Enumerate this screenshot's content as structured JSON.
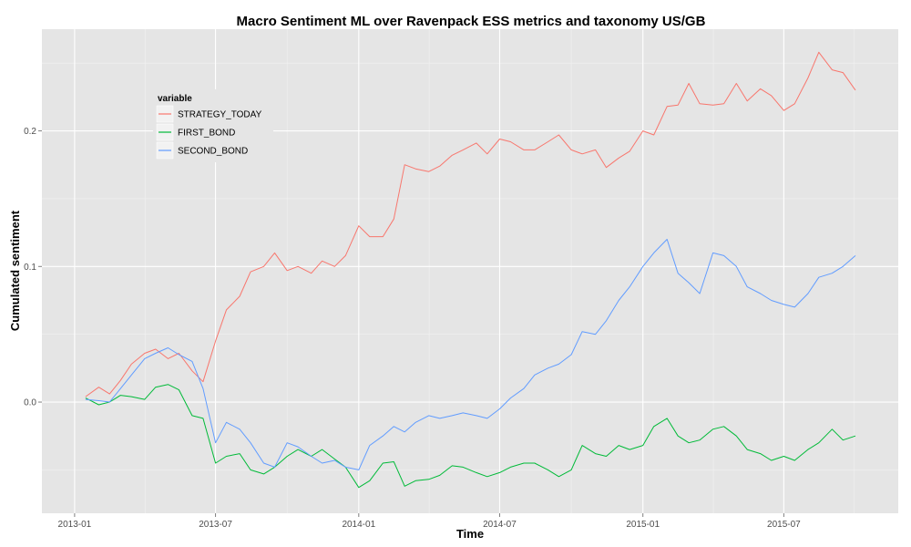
{
  "chart_data": {
    "type": "line",
    "title": "Macro Sentiment ML over Ravenpack ESS metrics and taxonomy US/GB",
    "xlabel": "Time",
    "ylabel": "Cumulated sentiment",
    "x_ticks": [
      "2013-01",
      "2013-07",
      "2014-01",
      "2014-07",
      "2015-01",
      "2015-07"
    ],
    "y_ticks": [
      "0.0",
      "0.1",
      "0.2"
    ],
    "xlim": [
      "2012-11-20",
      "2015-11-25"
    ],
    "ylim": [
      -0.082,
      0.275
    ],
    "grid": true,
    "legend": {
      "title": "variable",
      "position": "top-left"
    },
    "x": [
      "2013-01-15",
      "2013-02-01",
      "2013-02-15",
      "2013-03-01",
      "2013-03-15",
      "2013-04-01",
      "2013-04-15",
      "2013-05-01",
      "2013-05-15",
      "2013-06-01",
      "2013-06-15",
      "2013-07-01",
      "2013-07-15",
      "2013-08-01",
      "2013-08-15",
      "2013-09-01",
      "2013-09-15",
      "2013-10-01",
      "2013-10-15",
      "2013-11-01",
      "2013-11-15",
      "2013-12-01",
      "2013-12-15",
      "2014-01-01",
      "2014-01-15",
      "2014-02-01",
      "2014-02-15",
      "2014-03-01",
      "2014-03-15",
      "2014-04-01",
      "2014-04-15",
      "2014-05-01",
      "2014-05-15",
      "2014-06-01",
      "2014-06-15",
      "2014-07-01",
      "2014-07-15",
      "2014-08-01",
      "2014-08-15",
      "2014-09-01",
      "2014-09-15",
      "2014-10-01",
      "2014-10-15",
      "2014-11-01",
      "2014-11-15",
      "2014-12-01",
      "2014-12-15",
      "2015-01-01",
      "2015-01-15",
      "2015-02-01",
      "2015-02-15",
      "2015-03-01",
      "2015-03-15",
      "2015-04-01",
      "2015-04-15",
      "2015-05-01",
      "2015-05-15",
      "2015-06-01",
      "2015-06-15",
      "2015-07-01",
      "2015-07-15",
      "2015-08-01",
      "2015-08-15",
      "2015-09-01",
      "2015-09-15",
      "2015-10-01"
    ],
    "series": [
      {
        "name": "STRATEGY_TODAY",
        "color": "#F8766D",
        "values": [
          0.004,
          0.011,
          0.006,
          0.016,
          0.028,
          0.036,
          0.039,
          0.032,
          0.036,
          0.023,
          0.015,
          0.045,
          0.068,
          0.078,
          0.096,
          0.1,
          0.11,
          0.097,
          0.1,
          0.095,
          0.104,
          0.1,
          0.108,
          0.13,
          0.122,
          0.122,
          0.135,
          0.175,
          0.172,
          0.17,
          0.174,
          0.182,
          0.186,
          0.191,
          0.183,
          0.194,
          0.192,
          0.186,
          0.186,
          0.192,
          0.197,
          0.186,
          0.183,
          0.186,
          0.173,
          0.18,
          0.185,
          0.2,
          0.197,
          0.218,
          0.219,
          0.235,
          0.22,
          0.219,
          0.22,
          0.235,
          0.222,
          0.231,
          0.226,
          0.215,
          0.22,
          0.239,
          0.258,
          0.245,
          0.243,
          0.23
        ]
      },
      {
        "name": "FIRST_BOND",
        "color": "#00BA38",
        "values": [
          0.003,
          -0.002,
          0.0,
          0.005,
          0.004,
          0.002,
          0.011,
          0.013,
          0.009,
          -0.01,
          -0.012,
          -0.045,
          -0.04,
          -0.038,
          -0.05,
          -0.053,
          -0.048,
          -0.04,
          -0.035,
          -0.04,
          -0.035,
          -0.042,
          -0.048,
          -0.063,
          -0.058,
          -0.045,
          -0.044,
          -0.062,
          -0.058,
          -0.057,
          -0.054,
          -0.047,
          -0.048,
          -0.052,
          -0.055,
          -0.052,
          -0.048,
          -0.045,
          -0.045,
          -0.05,
          -0.055,
          -0.05,
          -0.032,
          -0.038,
          -0.04,
          -0.032,
          -0.035,
          -0.032,
          -0.018,
          -0.012,
          -0.025,
          -0.03,
          -0.028,
          -0.02,
          -0.018,
          -0.025,
          -0.035,
          -0.038,
          -0.043,
          -0.04,
          -0.043,
          -0.035,
          -0.03,
          -0.02,
          -0.028,
          -0.025
        ]
      },
      {
        "name": "SECOND_BOND",
        "color": "#619CFF",
        "values": [
          0.002,
          0.001,
          0.0,
          0.01,
          0.02,
          0.032,
          0.036,
          0.04,
          0.035,
          0.03,
          0.01,
          -0.03,
          -0.015,
          -0.02,
          -0.03,
          -0.045,
          -0.048,
          -0.03,
          -0.033,
          -0.04,
          -0.045,
          -0.043,
          -0.048,
          -0.05,
          -0.032,
          -0.025,
          -0.018,
          -0.022,
          -0.015,
          -0.01,
          -0.012,
          -0.01,
          -0.008,
          -0.01,
          -0.012,
          -0.005,
          0.003,
          0.01,
          0.02,
          0.025,
          0.028,
          0.035,
          0.052,
          0.05,
          0.06,
          0.075,
          0.085,
          0.1,
          0.11,
          0.12,
          0.095,
          0.088,
          0.08,
          0.11,
          0.108,
          0.1,
          0.085,
          0.08,
          0.075,
          0.072,
          0.07,
          0.08,
          0.092,
          0.095,
          0.1,
          0.108
        ]
      }
    ]
  }
}
